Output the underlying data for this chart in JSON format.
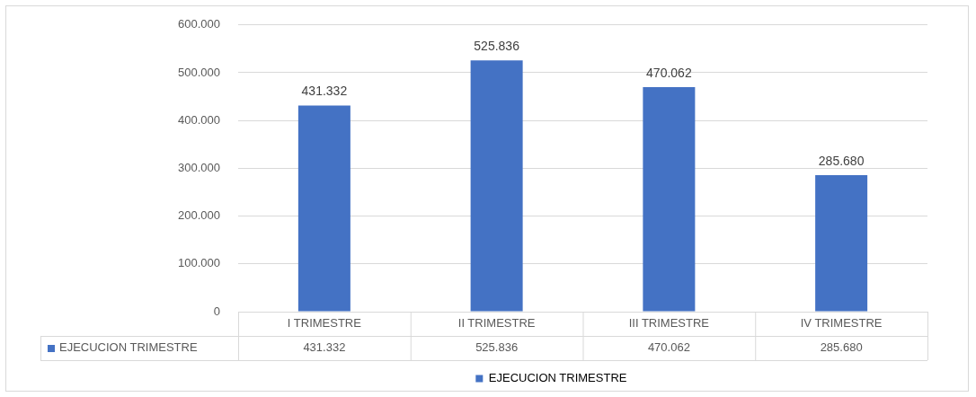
{
  "chart_data": {
    "type": "bar",
    "categories": [
      "I TRIMESTRE",
      "II TRIMESTRE",
      "III TRIMESTRE",
      "IV TRIMESTRE"
    ],
    "series": [
      {
        "name": "EJECUCION TRIMESTRE",
        "color": "#4472c4",
        "values": [
          431332,
          525836,
          470062,
          285680
        ],
        "value_labels": [
          "431.332",
          "525.836",
          "470.062",
          "285.680"
        ]
      }
    ],
    "ylim": [
      0,
      600000
    ],
    "yticks": [
      {
        "value": 0,
        "label": "0"
      },
      {
        "value": 100000,
        "label": "100.000"
      },
      {
        "value": 200000,
        "label": "200.000"
      },
      {
        "value": 300000,
        "label": "300.000"
      },
      {
        "value": 400000,
        "label": "400.000"
      },
      {
        "value": 500000,
        "label": "500.000"
      },
      {
        "value": 600000,
        "label": "600.000"
      }
    ],
    "grid": "y",
    "legend": "bottom"
  }
}
